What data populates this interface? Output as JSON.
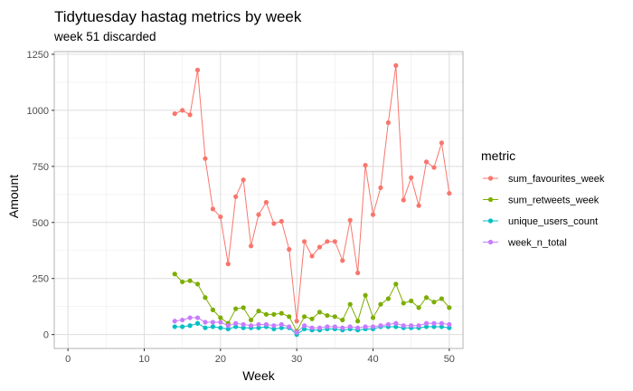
{
  "chart_data": {
    "type": "line",
    "title": "Tidytuesday hastag metrics by week",
    "subtitle": "week 51 discarded",
    "xlabel": "Week",
    "ylabel": "Amount",
    "xlim": [
      -1.8,
      51.8
    ],
    "ylim": [
      -62,
      1262
    ],
    "xticks": [
      0,
      10,
      20,
      30,
      40,
      50
    ],
    "yticks": [
      0,
      250,
      500,
      750,
      1000,
      1250
    ],
    "grid": true,
    "legend": {
      "title": "metric",
      "position": "right"
    },
    "x": [
      14,
      15,
      16,
      17,
      18,
      19,
      20,
      21,
      22,
      23,
      24,
      25,
      26,
      27,
      28,
      29,
      30,
      31,
      32,
      33,
      34,
      35,
      36,
      37,
      38,
      39,
      40,
      41,
      42,
      43,
      44,
      45,
      46,
      47,
      48,
      49,
      50
    ],
    "series": [
      {
        "name": "sum_favourites_week",
        "color": "#F8766D",
        "values": [
          985,
          1000,
          980,
          1180,
          785,
          560,
          525,
          315,
          615,
          690,
          395,
          535,
          590,
          495,
          505,
          380,
          60,
          415,
          350,
          390,
          415,
          415,
          330,
          510,
          275,
          755,
          535,
          655,
          945,
          1200,
          600,
          700,
          575,
          770,
          745,
          855,
          630
        ]
      },
      {
        "name": "sum_retweets_week",
        "color": "#7CAE00",
        "values": [
          270,
          235,
          240,
          225,
          165,
          110,
          75,
          50,
          115,
          120,
          65,
          105,
          90,
          90,
          95,
          80,
          15,
          80,
          70,
          100,
          85,
          80,
          65,
          135,
          60,
          175,
          75,
          135,
          160,
          225,
          140,
          150,
          120,
          165,
          145,
          160,
          120
        ]
      },
      {
        "name": "unique_users_count",
        "color": "#00BFC4",
        "values": [
          35,
          35,
          40,
          50,
          30,
          35,
          30,
          25,
          35,
          30,
          30,
          30,
          35,
          25,
          30,
          30,
          0,
          25,
          20,
          20,
          25,
          25,
          20,
          25,
          20,
          25,
          25,
          35,
          35,
          35,
          30,
          30,
          30,
          35,
          35,
          35,
          30
        ]
      },
      {
        "name": "week_n_total",
        "color": "#C77CFF",
        "values": [
          60,
          65,
          75,
          75,
          55,
          55,
          55,
          40,
          50,
          45,
          40,
          45,
          45,
          40,
          45,
          35,
          10,
          40,
          30,
          30,
          35,
          35,
          30,
          35,
          30,
          35,
          35,
          40,
          45,
          50,
          40,
          40,
          40,
          50,
          50,
          50,
          45
        ]
      }
    ]
  }
}
